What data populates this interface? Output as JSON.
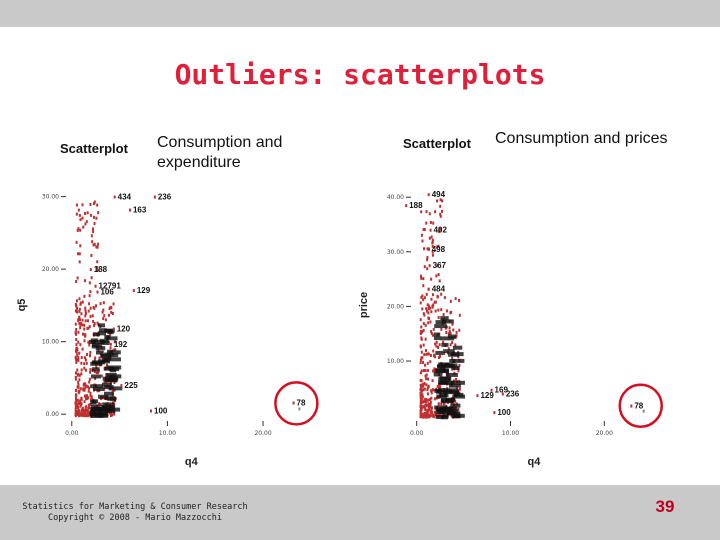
{
  "slide": {
    "title": "Outliers: scatterplots",
    "footer_line1": "Statistics for Marketing & Consumer Research",
    "footer_line2": "Copyright © 2008 - Mario Mazzocchi",
    "page_number": "39"
  },
  "colors": {
    "title": "#e0203a",
    "points": "#c03030",
    "circle": "#d41020",
    "bars": "#c9c9c9"
  },
  "chart_data": [
    {
      "type": "scatter",
      "label": "Scatterplot",
      "description": "Consumption and expenditure",
      "xlabel": "q4",
      "ylabel": "q5",
      "xticks": [
        "0.00",
        "10.00",
        "20.00"
      ],
      "yticks": [
        "0.00",
        "10.00",
        "20.00",
        "30.00"
      ],
      "xlim": [
        -0.5,
        27
      ],
      "ylim": [
        -0.8,
        30.5
      ],
      "point_labels": [
        {
          "text": "434",
          "x": 4.8,
          "y": 29.6
        },
        {
          "text": "236",
          "x": 9.0,
          "y": 29.6
        },
        {
          "text": "163",
          "x": 6.4,
          "y": 27.8
        },
        {
          "text": "188",
          "x": 2.3,
          "y": 19.6
        },
        {
          "text": "12791",
          "x": 2.8,
          "y": 17.3
        },
        {
          "text": "129",
          "x": 6.8,
          "y": 16.7
        },
        {
          "text": "106",
          "x": 3.0,
          "y": 16.5
        },
        {
          "text": "120",
          "x": 4.7,
          "y": 11.4
        },
        {
          "text": "192",
          "x": 4.4,
          "y": 9.3
        },
        {
          "text": "225",
          "x": 5.5,
          "y": 3.6
        },
        {
          "text": "100",
          "x": 8.6,
          "y": 0.1
        },
        {
          "text": "78",
          "x": 23.5,
          "y": 1.2
        }
      ],
      "outlier": {
        "label": "78",
        "x": 23.8,
        "y": 0.8
      }
    },
    {
      "type": "scatter",
      "label": "Scatterplot",
      "description": "Consumption and prices",
      "xlabel": "q4",
      "ylabel": "price",
      "xticks": [
        "0.00",
        "10.00",
        "20.00"
      ],
      "yticks": [
        "10.00",
        "20.00",
        "30.00",
        "40.00"
      ],
      "xlim": [
        -0.5,
        27
      ],
      "ylim": [
        -0.8,
        41.5
      ],
      "point_labels": [
        {
          "text": "494",
          "x": 1.6,
          "y": 40.0
        },
        {
          "text": "188",
          "x": -0.8,
          "y": 38.0
        },
        {
          "text": "402",
          "x": 1.8,
          "y": 33.5
        },
        {
          "text": "498",
          "x": 1.6,
          "y": 30.0
        },
        {
          "text": "367",
          "x": 1.7,
          "y": 27.0
        },
        {
          "text": "484",
          "x": 1.6,
          "y": 22.7
        },
        {
          "text": "169",
          "x": 8.3,
          "y": 4.2
        },
        {
          "text": "236",
          "x": 9.5,
          "y": 3.5
        },
        {
          "text": "129",
          "x": 6.8,
          "y": 3.2
        },
        {
          "text": "100",
          "x": 8.6,
          "y": 0.1
        },
        {
          "text": "78",
          "x": 23.2,
          "y": 1.3
        }
      ],
      "outlier": {
        "label": "78",
        "x": 24.2,
        "y": 0.9
      }
    }
  ]
}
